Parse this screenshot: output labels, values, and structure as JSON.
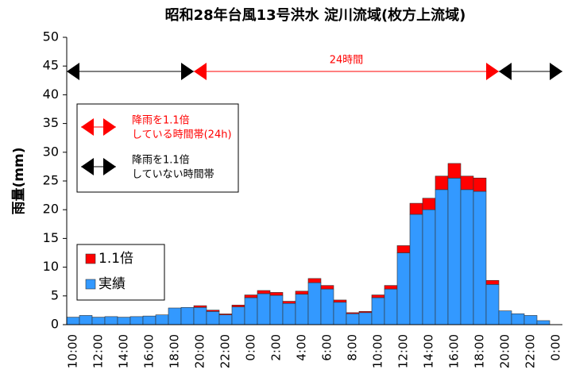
{
  "chart_data": {
    "type": "bar",
    "stacked": true,
    "title": "昭和28年台風13号洪水  淀川流域(枚方上流域)",
    "y_label": "雨量(mm)",
    "categories": [
      "10:00",
      null,
      "12:00",
      null,
      "14:00",
      null,
      "16:00",
      null,
      "18:00",
      null,
      "20:00",
      null,
      "22:00",
      null,
      "0:00",
      null,
      "2:00",
      null,
      "4:00",
      null,
      "6:00",
      null,
      "8:00",
      null,
      "10:00",
      null,
      "12:00",
      null,
      "14:00",
      null,
      "16:00",
      null,
      "18:00",
      null,
      "20:00",
      null,
      "22:00",
      null,
      "0:00"
    ],
    "series": [
      {
        "name": "実績",
        "color": "#3399ff",
        "values": [
          1.3,
          1.6,
          1.3,
          1.4,
          1.3,
          1.4,
          1.5,
          1.7,
          2.9,
          3.0,
          3.0,
          2.3,
          1.7,
          3.1,
          4.7,
          5.4,
          5.1,
          3.7,
          5.3,
          7.3,
          6.2,
          3.9,
          1.9,
          2.1,
          4.7,
          6.2,
          12.5,
          19.2,
          20.0,
          23.5,
          25.5,
          23.5,
          23.2,
          7.0,
          2.4,
          1.9,
          1.6,
          0.7,
          0
        ]
      },
      {
        "name": "1.1倍",
        "color": "#ff0000",
        "values": [
          0,
          0,
          0,
          0,
          0,
          0,
          0,
          0,
          0,
          0,
          0.3,
          0.23,
          0.17,
          0.31,
          0.47,
          0.54,
          0.51,
          0.37,
          0.53,
          0.73,
          0.62,
          0.39,
          0.19,
          0.21,
          0.47,
          0.62,
          1.25,
          1.92,
          2.0,
          2.35,
          2.55,
          2.35,
          2.32,
          0.7,
          0,
          0,
          0,
          0,
          0
        ]
      }
    ],
    "ylim": [
      0,
      50
    ],
    "yticks": [
      0,
      5,
      10,
      15,
      20,
      25,
      30,
      35,
      40,
      45,
      50
    ],
    "annotation": "24時間",
    "arrow_legend": [
      {
        "color": "#ff0000",
        "lines": [
          "降雨を1.1倍",
          "している時間帯(24h)"
        ]
      },
      {
        "color": "#000000",
        "lines": [
          "降雨を1.1倍",
          "していない時間帯"
        ]
      }
    ]
  }
}
